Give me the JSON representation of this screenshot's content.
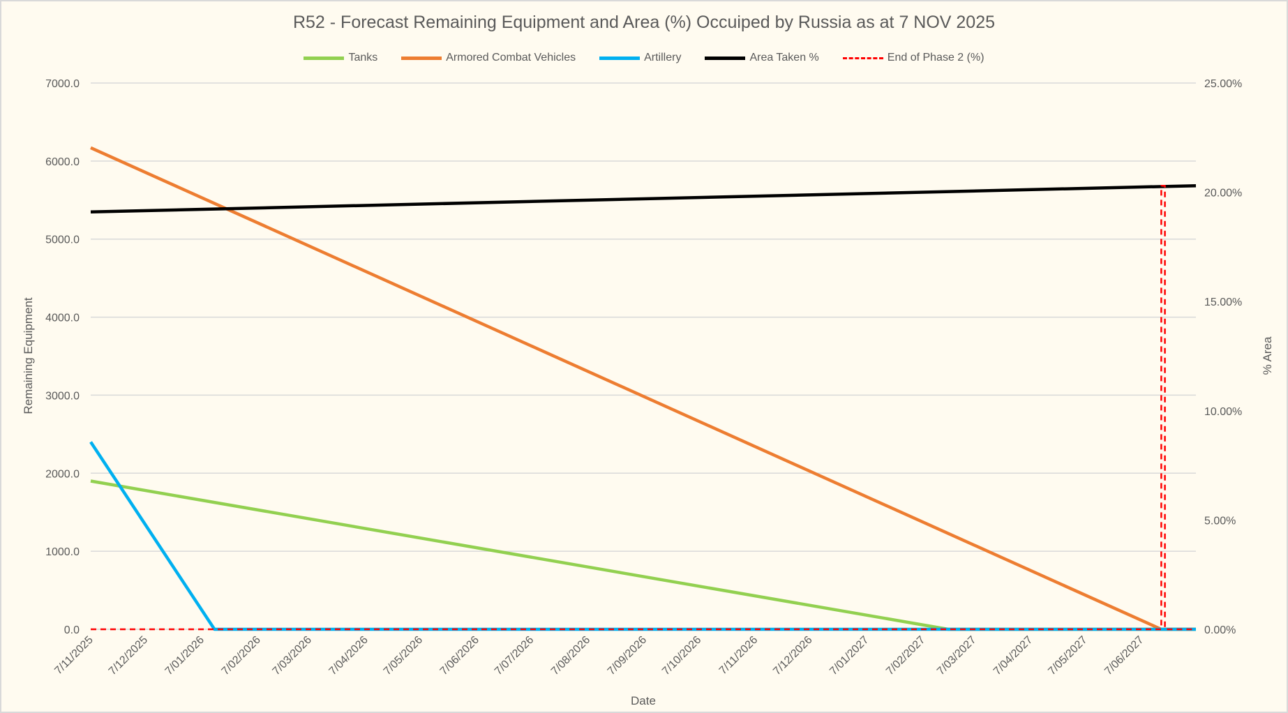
{
  "chart_data": {
    "type": "line",
    "title": "R52 - Forecast Remaining Equipment and Area (%) Occuiped by Russia as at 7 NOV 2025",
    "xlabel": "Date",
    "ylabel": "Remaining Equipment",
    "y2label": "% Area",
    "xlim": [
      "2025-11-07",
      "2027-07-07"
    ],
    "ylim": [
      0,
      7000
    ],
    "y2lim": [
      0,
      25
    ],
    "grid": true,
    "legend_placement": "top",
    "x_tick_labels": [
      "7/11/2025",
      "7/12/2025",
      "7/01/2026",
      "7/02/2026",
      "7/03/2026",
      "7/04/2026",
      "7/05/2026",
      "7/06/2026",
      "7/07/2026",
      "7/08/2026",
      "7/09/2026",
      "7/10/2026",
      "7/11/2026",
      "7/12/2026",
      "7/01/2027",
      "7/02/2027",
      "7/03/2027",
      "7/04/2027",
      "7/05/2027",
      "7/06/2027"
    ],
    "y_tick_labels": [
      "0.0",
      "1000.0",
      "2000.0",
      "3000.0",
      "4000.0",
      "5000.0",
      "6000.0",
      "7000.0"
    ],
    "y2_tick_labels": [
      "0.00%",
      "5.00%",
      "10.00%",
      "15.00%",
      "20.00%",
      "25.00%"
    ],
    "series": [
      {
        "name": "Tanks",
        "axis": "left",
        "color": "#92d050",
        "dash": false,
        "points": [
          [
            "2025-11-07",
            1900
          ],
          [
            "2027-02-21",
            0
          ],
          [
            "2027-07-07",
            0
          ]
        ]
      },
      {
        "name": "Armored Combat Vehicles",
        "axis": "left",
        "color": "#ed7d31",
        "dash": false,
        "points": [
          [
            "2025-11-07",
            6170
          ],
          [
            "2027-06-18",
            0
          ],
          [
            "2027-07-07",
            0
          ]
        ]
      },
      {
        "name": "Artillery",
        "axis": "left",
        "color": "#00b0f0",
        "dash": false,
        "points": [
          [
            "2025-11-07",
            2400
          ],
          [
            "2026-01-14",
            0
          ],
          [
            "2027-07-07",
            0
          ]
        ]
      },
      {
        "name": "Area Taken %",
        "axis": "right",
        "color": "#000000",
        "dash": false,
        "points": [
          [
            "2025-11-07",
            19.1
          ],
          [
            "2027-07-07",
            20.3
          ]
        ]
      },
      {
        "name": "End of Phase 2 (%)",
        "axis": "right",
        "color": "#ff0000",
        "dash": true,
        "points": [
          [
            "2025-11-07",
            0
          ],
          [
            "2027-06-18",
            0
          ],
          [
            "2027-06-18",
            20.3
          ],
          [
            "2027-06-20",
            20.3
          ],
          [
            "2027-06-20",
            0
          ],
          [
            "2027-07-07",
            0
          ]
        ]
      }
    ]
  }
}
